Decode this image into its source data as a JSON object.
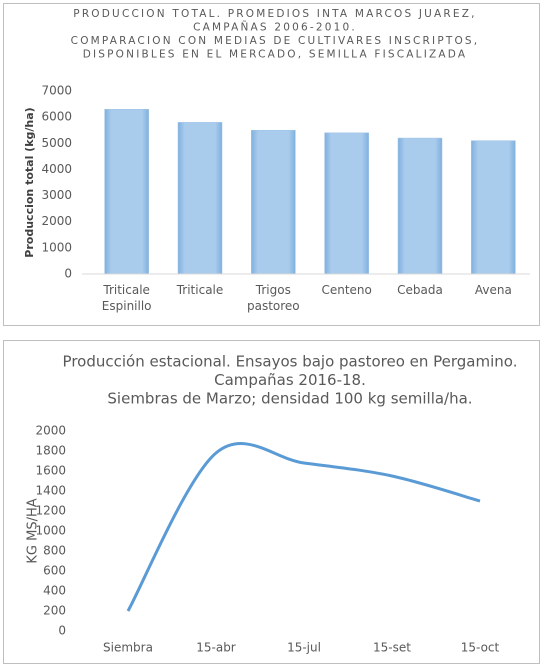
{
  "chart_data": [
    {
      "type": "bar",
      "title": [
        "PRODUCCION TOTAL. PROMEDIOS INTA MARCOS JUAREZ,",
        "CAMPAÑAS 2006-2010.",
        "COMPARACION CON MEDIAS DE CULTIVARES INSCRIPTOS,",
        "DISPONIBLES EN EL MERCADO, SEMILLA FISCALIZADA"
      ],
      "y_label": "Produccion total (kg/ha)",
      "categories": [
        "Triticale Espinillo",
        "Triticale",
        "Trigos pastoreo",
        "Centeno",
        "Cebada",
        "Avena"
      ],
      "values": [
        6300,
        5800,
        5500,
        5400,
        5200,
        5100
      ],
      "color": "#9dc3e6",
      "ylim": [
        0,
        7000
      ],
      "yticks": [
        0,
        1000,
        2000,
        3000,
        4000,
        5000,
        6000,
        7000
      ],
      "grid": false
    },
    {
      "type": "line",
      "title": [
        "Producción estacional. Ensayos bajo pastoreo en Pergamino.",
        "Campañas 2016-18.",
        "Siembras de Marzo; densidad 100 kg semilla/ha."
      ],
      "y_label": "KG MS/HA",
      "categories": [
        "Siembra",
        "15-abr",
        "15-jul",
        "15-set",
        "15-oct"
      ],
      "values": [
        200,
        1780,
        1680,
        1550,
        1300
      ],
      "color": "#5b9bd5",
      "ylim": [
        0,
        2000
      ],
      "yticks": [
        0,
        200,
        400,
        600,
        800,
        1000,
        1200,
        1400,
        1600,
        1800,
        2000
      ],
      "grid": false
    }
  ]
}
